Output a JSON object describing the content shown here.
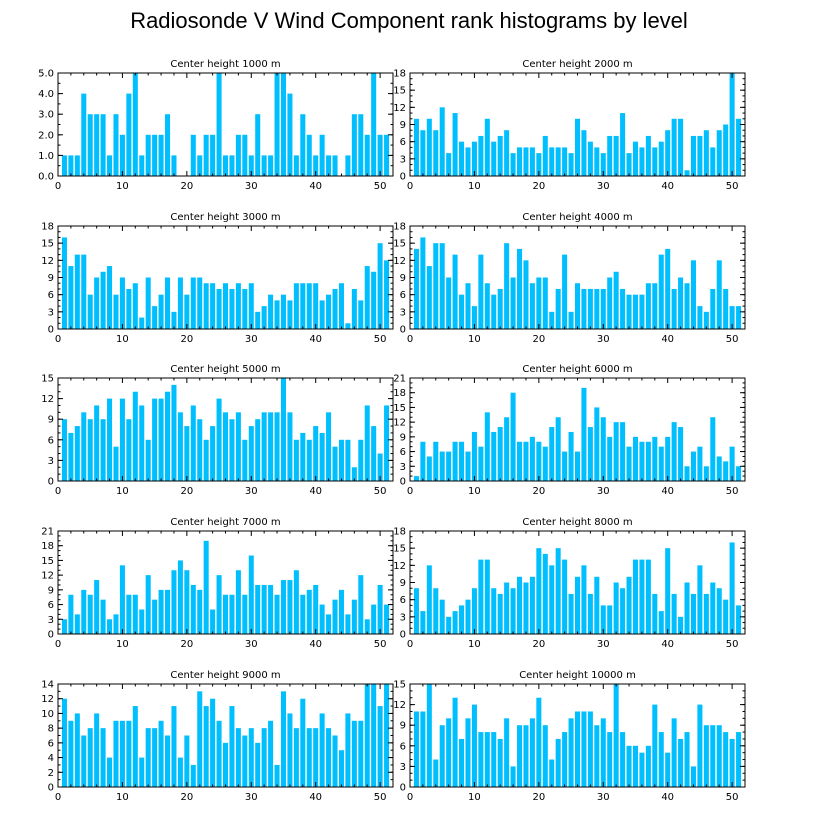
{
  "title": "Radiosonde V Wind Component rank histograms by level",
  "colors": {
    "bar": "#00bfff",
    "axis": "#000000",
    "background": "#ffffff"
  },
  "chart_data": [
    {
      "type": "bar",
      "title": "Center height 1000 m",
      "xlabel": "",
      "ylabel": "",
      "xlim": [
        0,
        52
      ],
      "ylim": [
        0,
        5
      ],
      "xticks": [
        0,
        10,
        20,
        30,
        40,
        50
      ],
      "xtick_labels": [
        "0",
        "10",
        "20",
        "30",
        "40",
        "50"
      ],
      "yticks": [
        0,
        1,
        2,
        3,
        4,
        5
      ],
      "ytick_labels": [
        "0.0",
        "1.0",
        "2.0",
        "3.0",
        "4.0",
        "5.0"
      ],
      "x": [
        1,
        2,
        3,
        4,
        5,
        6,
        7,
        8,
        9,
        10,
        11,
        12,
        13,
        14,
        15,
        16,
        17,
        18,
        19,
        20,
        21,
        22,
        23,
        24,
        25,
        26,
        27,
        28,
        29,
        30,
        31,
        32,
        33,
        34,
        35,
        36,
        37,
        38,
        39,
        40,
        41,
        42,
        43,
        44,
        45,
        46,
        47,
        48,
        49,
        50,
        51
      ],
      "values": [
        1,
        1,
        1,
        4,
        3,
        3,
        3,
        1,
        3,
        2,
        4,
        5,
        1,
        2,
        2,
        2,
        3,
        1,
        0,
        0,
        2,
        1,
        2,
        2,
        5,
        1,
        1,
        2,
        2,
        1,
        3,
        1,
        1,
        5,
        5,
        4,
        1,
        3,
        2,
        1,
        2,
        1,
        1,
        0,
        1,
        3,
        3,
        2,
        5,
        2,
        2
      ]
    },
    {
      "type": "bar",
      "title": "Center height 2000 m",
      "xlabel": "",
      "ylabel": "",
      "xlim": [
        0,
        52
      ],
      "ylim": [
        0,
        18
      ],
      "xticks": [
        0,
        10,
        20,
        30,
        40,
        50
      ],
      "xtick_labels": [
        "0",
        "10",
        "20",
        "30",
        "40",
        "50"
      ],
      "yticks": [
        0,
        3,
        6,
        9,
        12,
        15,
        18
      ],
      "ytick_labels": [
        "0",
        "3",
        "6",
        "9",
        "12",
        "15",
        "18"
      ],
      "x": [
        1,
        2,
        3,
        4,
        5,
        6,
        7,
        8,
        9,
        10,
        11,
        12,
        13,
        14,
        15,
        16,
        17,
        18,
        19,
        20,
        21,
        22,
        23,
        24,
        25,
        26,
        27,
        28,
        29,
        30,
        31,
        32,
        33,
        34,
        35,
        36,
        37,
        38,
        39,
        40,
        41,
        42,
        43,
        44,
        45,
        46,
        47,
        48,
        49,
        50,
        51
      ],
      "values": [
        10,
        8,
        10,
        8,
        12,
        4,
        11,
        6,
        5,
        6,
        7,
        10,
        6,
        7,
        8,
        4,
        5,
        5,
        5,
        4,
        7,
        5,
        5,
        5,
        4,
        10,
        8,
        6,
        5,
        4,
        7,
        7,
        11,
        4,
        6,
        5,
        7,
        5,
        6,
        8,
        10,
        10,
        1,
        7,
        7,
        8,
        5,
        8,
        9,
        18,
        10
      ]
    },
    {
      "type": "bar",
      "title": "Center height 3000 m",
      "xlabel": "",
      "ylabel": "",
      "xlim": [
        0,
        52
      ],
      "ylim": [
        0,
        18
      ],
      "xticks": [
        0,
        10,
        20,
        30,
        40,
        50
      ],
      "xtick_labels": [
        "0",
        "10",
        "20",
        "30",
        "40",
        "50"
      ],
      "yticks": [
        0,
        3,
        6,
        9,
        12,
        15,
        18
      ],
      "ytick_labels": [
        "0",
        "3",
        "6",
        "9",
        "12",
        "15",
        "18"
      ],
      "x": [
        1,
        2,
        3,
        4,
        5,
        6,
        7,
        8,
        9,
        10,
        11,
        12,
        13,
        14,
        15,
        16,
        17,
        18,
        19,
        20,
        21,
        22,
        23,
        24,
        25,
        26,
        27,
        28,
        29,
        30,
        31,
        32,
        33,
        34,
        35,
        36,
        37,
        38,
        39,
        40,
        41,
        42,
        43,
        44,
        45,
        46,
        47,
        48,
        49,
        50,
        51
      ],
      "values": [
        16,
        11,
        13,
        13,
        6,
        9,
        10,
        11,
        6,
        9,
        7,
        8,
        2,
        9,
        4,
        6,
        9,
        3,
        9,
        6,
        9,
        9,
        8,
        8,
        7,
        8,
        7,
        8,
        7,
        8,
        3,
        4,
        6,
        5,
        6,
        5,
        8,
        8,
        8,
        8,
        5,
        6,
        7,
        8,
        1,
        7,
        5,
        11,
        10,
        15,
        12
      ]
    },
    {
      "type": "bar",
      "title": "Center height 4000 m",
      "xlabel": "",
      "ylabel": "",
      "xlim": [
        0,
        52
      ],
      "ylim": [
        0,
        18
      ],
      "xticks": [
        0,
        10,
        20,
        30,
        40,
        50
      ],
      "xtick_labels": [
        "0",
        "10",
        "20",
        "30",
        "40",
        "50"
      ],
      "yticks": [
        0,
        3,
        6,
        9,
        12,
        15,
        18
      ],
      "ytick_labels": [
        "0",
        "3",
        "6",
        "9",
        "12",
        "15",
        "18"
      ],
      "x": [
        1,
        2,
        3,
        4,
        5,
        6,
        7,
        8,
        9,
        10,
        11,
        12,
        13,
        14,
        15,
        16,
        17,
        18,
        19,
        20,
        21,
        22,
        23,
        24,
        25,
        26,
        27,
        28,
        29,
        30,
        31,
        32,
        33,
        34,
        35,
        36,
        37,
        38,
        39,
        40,
        41,
        42,
        43,
        44,
        45,
        46,
        47,
        48,
        49,
        50,
        51
      ],
      "values": [
        14,
        16,
        11,
        15,
        15,
        9,
        13,
        6,
        8,
        4,
        13,
        8,
        6,
        7,
        15,
        9,
        14,
        12,
        8,
        9,
        9,
        3,
        7,
        13,
        3,
        8,
        7,
        7,
        7,
        7,
        9,
        10,
        7,
        6,
        6,
        6,
        8,
        8,
        13,
        14,
        7,
        9,
        8,
        12,
        4,
        3,
        7,
        12,
        7,
        4,
        4
      ]
    },
    {
      "type": "bar",
      "title": "Center height 5000 m",
      "xlabel": "",
      "ylabel": "",
      "xlim": [
        0,
        52
      ],
      "ylim": [
        0,
        15
      ],
      "xticks": [
        0,
        10,
        20,
        30,
        40,
        50
      ],
      "xtick_labels": [
        "0",
        "10",
        "20",
        "30",
        "40",
        "50"
      ],
      "yticks": [
        0,
        3,
        6,
        9,
        12,
        15
      ],
      "ytick_labels": [
        "0",
        "3",
        "6",
        "9",
        "12",
        "15"
      ],
      "x": [
        1,
        2,
        3,
        4,
        5,
        6,
        7,
        8,
        9,
        10,
        11,
        12,
        13,
        14,
        15,
        16,
        17,
        18,
        19,
        20,
        21,
        22,
        23,
        24,
        25,
        26,
        27,
        28,
        29,
        30,
        31,
        32,
        33,
        34,
        35,
        36,
        37,
        38,
        39,
        40,
        41,
        42,
        43,
        44,
        45,
        46,
        47,
        48,
        49,
        50,
        51
      ],
      "values": [
        9,
        7,
        8,
        10,
        9,
        11,
        9,
        12,
        5,
        12,
        9,
        13,
        11,
        6,
        12,
        12,
        13,
        14,
        10,
        8,
        11,
        9,
        6,
        8,
        12,
        10,
        9,
        10,
        6,
        8,
        9,
        10,
        10,
        10,
        15,
        10,
        6,
        7,
        6,
        8,
        7,
        10,
        5,
        6,
        6,
        2,
        6,
        11,
        8,
        4,
        11
      ]
    },
    {
      "type": "bar",
      "title": "Center height 6000 m",
      "xlabel": "",
      "ylabel": "",
      "xlim": [
        0,
        52
      ],
      "ylim": [
        0,
        21
      ],
      "xticks": [
        0,
        10,
        20,
        30,
        40,
        50
      ],
      "xtick_labels": [
        "0",
        "10",
        "20",
        "30",
        "40",
        "50"
      ],
      "yticks": [
        0,
        3,
        6,
        9,
        12,
        15,
        18,
        21
      ],
      "ytick_labels": [
        "0",
        "3",
        "6",
        "9",
        "12",
        "15",
        "18",
        "21"
      ],
      "x": [
        1,
        2,
        3,
        4,
        5,
        6,
        7,
        8,
        9,
        10,
        11,
        12,
        13,
        14,
        15,
        16,
        17,
        18,
        19,
        20,
        21,
        22,
        23,
        24,
        25,
        26,
        27,
        28,
        29,
        30,
        31,
        32,
        33,
        34,
        35,
        36,
        37,
        38,
        39,
        40,
        41,
        42,
        43,
        44,
        45,
        46,
        47,
        48,
        49,
        50,
        51
      ],
      "values": [
        1,
        8,
        5,
        8,
        6,
        6,
        8,
        8,
        6,
        10,
        7,
        14,
        10,
        11,
        13,
        18,
        8,
        8,
        9,
        8,
        7,
        11,
        13,
        6,
        10,
        6,
        19,
        11,
        15,
        13,
        9,
        12,
        12,
        7,
        9,
        8,
        8,
        9,
        7,
        9,
        12,
        11,
        3,
        6,
        7,
        3,
        13,
        5,
        4,
        7,
        3
      ]
    },
    {
      "type": "bar",
      "title": "Center height 7000 m",
      "xlabel": "",
      "ylabel": "",
      "xlim": [
        0,
        52
      ],
      "ylim": [
        0,
        21
      ],
      "xticks": [
        0,
        10,
        20,
        30,
        40,
        50
      ],
      "xtick_labels": [
        "0",
        "10",
        "20",
        "30",
        "40",
        "50"
      ],
      "yticks": [
        0,
        3,
        6,
        9,
        12,
        15,
        18,
        21
      ],
      "ytick_labels": [
        "0",
        "3",
        "6",
        "9",
        "12",
        "15",
        "18",
        "21"
      ],
      "x": [
        1,
        2,
        3,
        4,
        5,
        6,
        7,
        8,
        9,
        10,
        11,
        12,
        13,
        14,
        15,
        16,
        17,
        18,
        19,
        20,
        21,
        22,
        23,
        24,
        25,
        26,
        27,
        28,
        29,
        30,
        31,
        32,
        33,
        34,
        35,
        36,
        37,
        38,
        39,
        40,
        41,
        42,
        43,
        44,
        45,
        46,
        47,
        48,
        49,
        50,
        51
      ],
      "values": [
        3,
        8,
        4,
        9,
        8,
        11,
        7,
        3,
        4,
        14,
        8,
        8,
        5,
        12,
        7,
        9,
        9,
        13,
        15,
        13,
        10,
        9,
        19,
        5,
        12,
        8,
        8,
        13,
        8,
        16,
        10,
        10,
        10,
        8,
        11,
        11,
        13,
        8,
        9,
        10,
        6,
        4,
        7,
        9,
        4,
        7,
        12,
        3,
        6,
        10,
        6
      ]
    },
    {
      "type": "bar",
      "title": "Center height 8000 m",
      "xlabel": "",
      "ylabel": "",
      "xlim": [
        0,
        52
      ],
      "ylim": [
        0,
        18
      ],
      "xticks": [
        0,
        10,
        20,
        30,
        40,
        50
      ],
      "xtick_labels": [
        "0",
        "10",
        "20",
        "30",
        "40",
        "50"
      ],
      "yticks": [
        0,
        3,
        6,
        9,
        12,
        15,
        18
      ],
      "ytick_labels": [
        "0",
        "3",
        "6",
        "9",
        "12",
        "15",
        "18"
      ],
      "x": [
        1,
        2,
        3,
        4,
        5,
        6,
        7,
        8,
        9,
        10,
        11,
        12,
        13,
        14,
        15,
        16,
        17,
        18,
        19,
        20,
        21,
        22,
        23,
        24,
        25,
        26,
        27,
        28,
        29,
        30,
        31,
        32,
        33,
        34,
        35,
        36,
        37,
        38,
        39,
        40,
        41,
        42,
        43,
        44,
        45,
        46,
        47,
        48,
        49,
        50,
        51
      ],
      "values": [
        8,
        4,
        12,
        8,
        6,
        3,
        4,
        5,
        6,
        8,
        13,
        13,
        8,
        7,
        9,
        8,
        10,
        9,
        10,
        15,
        14,
        12,
        15,
        13,
        7,
        10,
        12,
        7,
        10,
        5,
        5,
        9,
        8,
        10,
        13,
        13,
        13,
        7,
        4,
        15,
        7,
        3,
        9,
        7,
        12,
        7,
        9,
        8,
        6,
        16,
        5
      ]
    },
    {
      "type": "bar",
      "title": "Center height 9000 m",
      "xlabel": "",
      "ylabel": "",
      "xlim": [
        0,
        52
      ],
      "ylim": [
        0,
        14
      ],
      "xticks": [
        0,
        10,
        20,
        30,
        40,
        50
      ],
      "xtick_labels": [
        "0",
        "10",
        "20",
        "30",
        "40",
        "50"
      ],
      "yticks": [
        0,
        2,
        4,
        6,
        8,
        10,
        12,
        14
      ],
      "ytick_labels": [
        "0",
        "2",
        "4",
        "6",
        "8",
        "10",
        "12",
        "14"
      ],
      "x": [
        1,
        2,
        3,
        4,
        5,
        6,
        7,
        8,
        9,
        10,
        11,
        12,
        13,
        14,
        15,
        16,
        17,
        18,
        19,
        20,
        21,
        22,
        23,
        24,
        25,
        26,
        27,
        28,
        29,
        30,
        31,
        32,
        33,
        34,
        35,
        36,
        37,
        38,
        39,
        40,
        41,
        42,
        43,
        44,
        45,
        46,
        47,
        48,
        49,
        50,
        51
      ],
      "values": [
        12,
        9,
        10,
        7,
        8,
        10,
        8,
        4,
        9,
        9,
        9,
        11,
        4,
        8,
        8,
        9,
        7,
        11,
        4,
        7,
        3,
        13,
        11,
        12,
        9,
        6,
        11,
        8,
        7,
        8,
        6,
        8,
        9,
        3,
        13,
        10,
        8,
        12,
        8,
        8,
        10,
        8,
        7,
        5,
        10,
        9,
        9,
        14,
        14,
        11,
        14
      ]
    },
    {
      "type": "bar",
      "title": "Center height 10000 m",
      "xlabel": "",
      "ylabel": "",
      "xlim": [
        0,
        52
      ],
      "ylim": [
        0,
        15
      ],
      "xticks": [
        0,
        10,
        20,
        30,
        40,
        50
      ],
      "xtick_labels": [
        "0",
        "10",
        "20",
        "30",
        "40",
        "50"
      ],
      "yticks": [
        0,
        3,
        6,
        9,
        12,
        15
      ],
      "ytick_labels": [
        "0",
        "3",
        "6",
        "9",
        "12",
        "15"
      ],
      "x": [
        1,
        2,
        3,
        4,
        5,
        6,
        7,
        8,
        9,
        10,
        11,
        12,
        13,
        14,
        15,
        16,
        17,
        18,
        19,
        20,
        21,
        22,
        23,
        24,
        25,
        26,
        27,
        28,
        29,
        30,
        31,
        32,
        33,
        34,
        35,
        36,
        37,
        38,
        39,
        40,
        41,
        42,
        43,
        44,
        45,
        46,
        47,
        48,
        49,
        50,
        51
      ],
      "values": [
        11,
        11,
        15,
        4,
        9,
        10,
        13,
        7,
        10,
        12,
        8,
        8,
        8,
        7,
        10,
        3,
        9,
        9,
        10,
        13,
        9,
        4,
        7,
        8,
        10,
        11,
        11,
        11,
        9,
        10,
        8,
        15,
        8,
        6,
        6,
        5,
        6,
        12,
        8,
        5,
        10,
        7,
        8,
        3,
        12,
        9,
        9,
        9,
        8,
        7,
        8
      ]
    }
  ]
}
